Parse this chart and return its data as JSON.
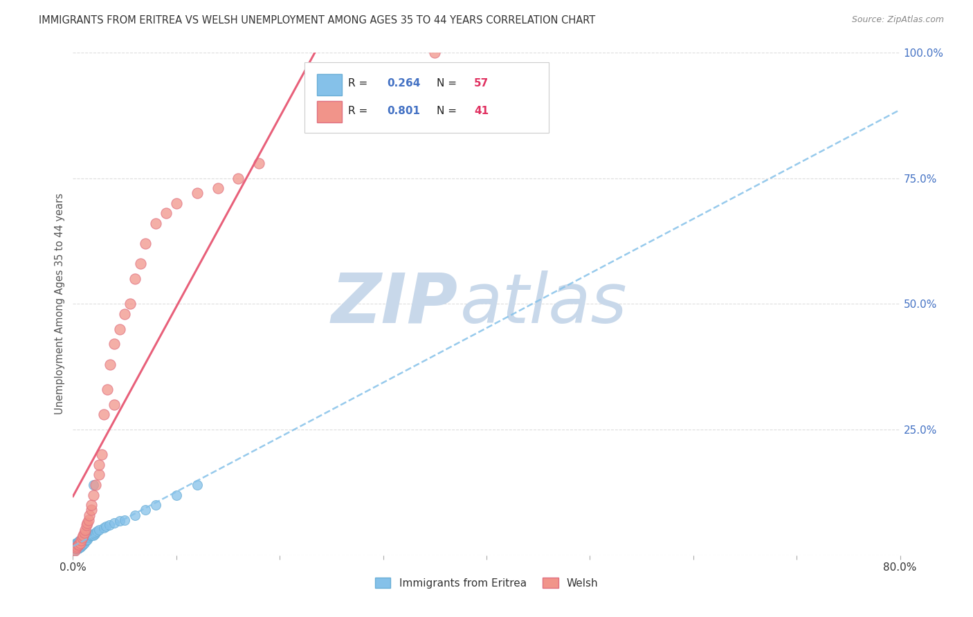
{
  "title": "IMMIGRANTS FROM ERITREA VS WELSH UNEMPLOYMENT AMONG AGES 35 TO 44 YEARS CORRELATION CHART",
  "source": "Source: ZipAtlas.com",
  "ylabel": "Unemployment Among Ages 35 to 44 years",
  "xlim": [
    0.0,
    0.8
  ],
  "ylim": [
    0.0,
    1.0
  ],
  "xticks": [
    0.0,
    0.1,
    0.2,
    0.3,
    0.4,
    0.5,
    0.6,
    0.7,
    0.8
  ],
  "xticklabels": [
    "0.0%",
    "",
    "",
    "",
    "",
    "",
    "",
    "",
    "80.0%"
  ],
  "yticks": [
    0.0,
    0.25,
    0.5,
    0.75,
    1.0
  ],
  "ytick_right_labels": [
    "",
    "25.0%",
    "50.0%",
    "75.0%",
    "100.0%"
  ],
  "series1_name": "Immigrants from Eritrea",
  "series1_color": "#85C1E9",
  "series1_edge": "#6AAED6",
  "series1_R": "0.264",
  "series1_N": "57",
  "series1_x": [
    0.001,
    0.001,
    0.001,
    0.002,
    0.002,
    0.002,
    0.002,
    0.003,
    0.003,
    0.003,
    0.003,
    0.004,
    0.004,
    0.004,
    0.005,
    0.005,
    0.005,
    0.005,
    0.006,
    0.006,
    0.006,
    0.007,
    0.007,
    0.007,
    0.008,
    0.008,
    0.009,
    0.009,
    0.01,
    0.01,
    0.011,
    0.011,
    0.012,
    0.013,
    0.014,
    0.015,
    0.016,
    0.017,
    0.018,
    0.019,
    0.02,
    0.021,
    0.022,
    0.023,
    0.025,
    0.03,
    0.032,
    0.035,
    0.04,
    0.045,
    0.05,
    0.06,
    0.07,
    0.08,
    0.1,
    0.12,
    0.02
  ],
  "series1_y": [
    0.01,
    0.015,
    0.02,
    0.01,
    0.015,
    0.018,
    0.02,
    0.012,
    0.018,
    0.022,
    0.025,
    0.013,
    0.018,
    0.025,
    0.013,
    0.017,
    0.021,
    0.026,
    0.015,
    0.02,
    0.028,
    0.016,
    0.022,
    0.028,
    0.018,
    0.025,
    0.02,
    0.028,
    0.022,
    0.03,
    0.025,
    0.032,
    0.028,
    0.03,
    0.032,
    0.035,
    0.038,
    0.04,
    0.04,
    0.042,
    0.04,
    0.042,
    0.045,
    0.048,
    0.05,
    0.055,
    0.058,
    0.06,
    0.065,
    0.068,
    0.07,
    0.08,
    0.09,
    0.1,
    0.12,
    0.14,
    0.14
  ],
  "series2_name": "Welsh",
  "series2_color": "#F1948A",
  "series2_edge": "#E07080",
  "series2_R": "0.801",
  "series2_N": "41",
  "series2_x": [
    0.002,
    0.003,
    0.004,
    0.005,
    0.006,
    0.007,
    0.008,
    0.009,
    0.01,
    0.011,
    0.012,
    0.013,
    0.014,
    0.015,
    0.016,
    0.018,
    0.018,
    0.02,
    0.022,
    0.025,
    0.025,
    0.028,
    0.03,
    0.033,
    0.036,
    0.04,
    0.04,
    0.045,
    0.05,
    0.055,
    0.06,
    0.065,
    0.07,
    0.08,
    0.09,
    0.1,
    0.12,
    0.14,
    0.16,
    0.18,
    0.35
  ],
  "series2_y": [
    0.01,
    0.015,
    0.018,
    0.02,
    0.022,
    0.025,
    0.03,
    0.035,
    0.04,
    0.045,
    0.05,
    0.06,
    0.065,
    0.07,
    0.08,
    0.09,
    0.1,
    0.12,
    0.14,
    0.16,
    0.18,
    0.2,
    0.28,
    0.33,
    0.38,
    0.3,
    0.42,
    0.45,
    0.48,
    0.5,
    0.55,
    0.58,
    0.62,
    0.66,
    0.68,
    0.7,
    0.72,
    0.73,
    0.75,
    0.78,
    1.0
  ],
  "trend1_x_start": 0.0,
  "trend1_x_end": 0.8,
  "trend2_x_start": 0.0,
  "trend2_x_end": 0.7,
  "watermark_zip": "ZIP",
  "watermark_atlas": "atlas",
  "watermark_color": "#C8D8EA",
  "background_color": "#FFFFFF",
  "grid_color": "#DDDDDD",
  "legend_R_color": "#4472C4",
  "legend_N_color": "#E03060",
  "title_color": "#333333",
  "source_color": "#888888",
  "ylabel_color": "#555555",
  "right_tick_color": "#4472C4",
  "bottom_tick_color": "#333333"
}
